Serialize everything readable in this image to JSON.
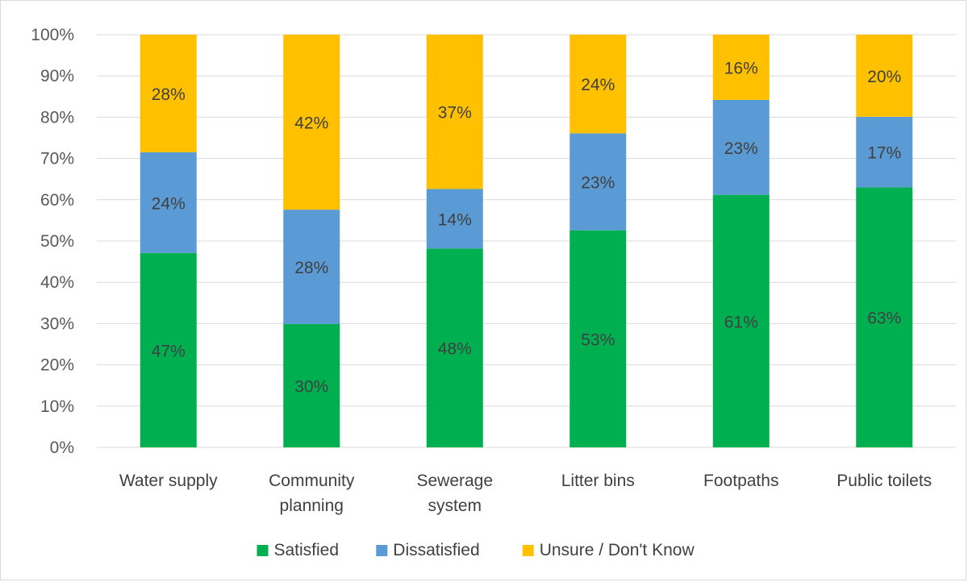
{
  "chart_data": {
    "type": "bar",
    "stacked": true,
    "categories": [
      [
        "Water supply"
      ],
      [
        "Community",
        "planning"
      ],
      [
        "Sewerage",
        "system"
      ],
      [
        "Litter bins"
      ],
      [
        "Footpaths"
      ],
      [
        "Public toilets"
      ]
    ],
    "series": [
      {
        "name": "Satisfied",
        "color": "#00b050",
        "values": [
          47,
          30,
          48,
          53,
          61,
          63
        ]
      },
      {
        "name": "Dissatisfied",
        "color": "#5b9bd5",
        "values": [
          24,
          28,
          14,
          23,
          23,
          17
        ]
      },
      {
        "name": "Unsure / Don't Know",
        "color": "#ffc000",
        "values": [
          28,
          42,
          37,
          24,
          16,
          20
        ]
      }
    ],
    "segment_heights": [
      [
        47.1,
        24.4,
        28.5
      ],
      [
        29.9,
        27.7,
        42.4
      ],
      [
        48.2,
        14.4,
        37.4
      ],
      [
        52.6,
        23.5,
        23.9
      ],
      [
        61.2,
        23.0,
        15.8
      ],
      [
        63.0,
        17.1,
        19.9
      ]
    ],
    "ylim": [
      0,
      100
    ],
    "yticks": [
      0,
      10,
      20,
      30,
      40,
      50,
      60,
      70,
      80,
      90,
      100
    ],
    "ytick_format": "{v}%",
    "grid": true,
    "legend_position": "bottom",
    "title": "",
    "xlabel": "",
    "ylabel": ""
  }
}
